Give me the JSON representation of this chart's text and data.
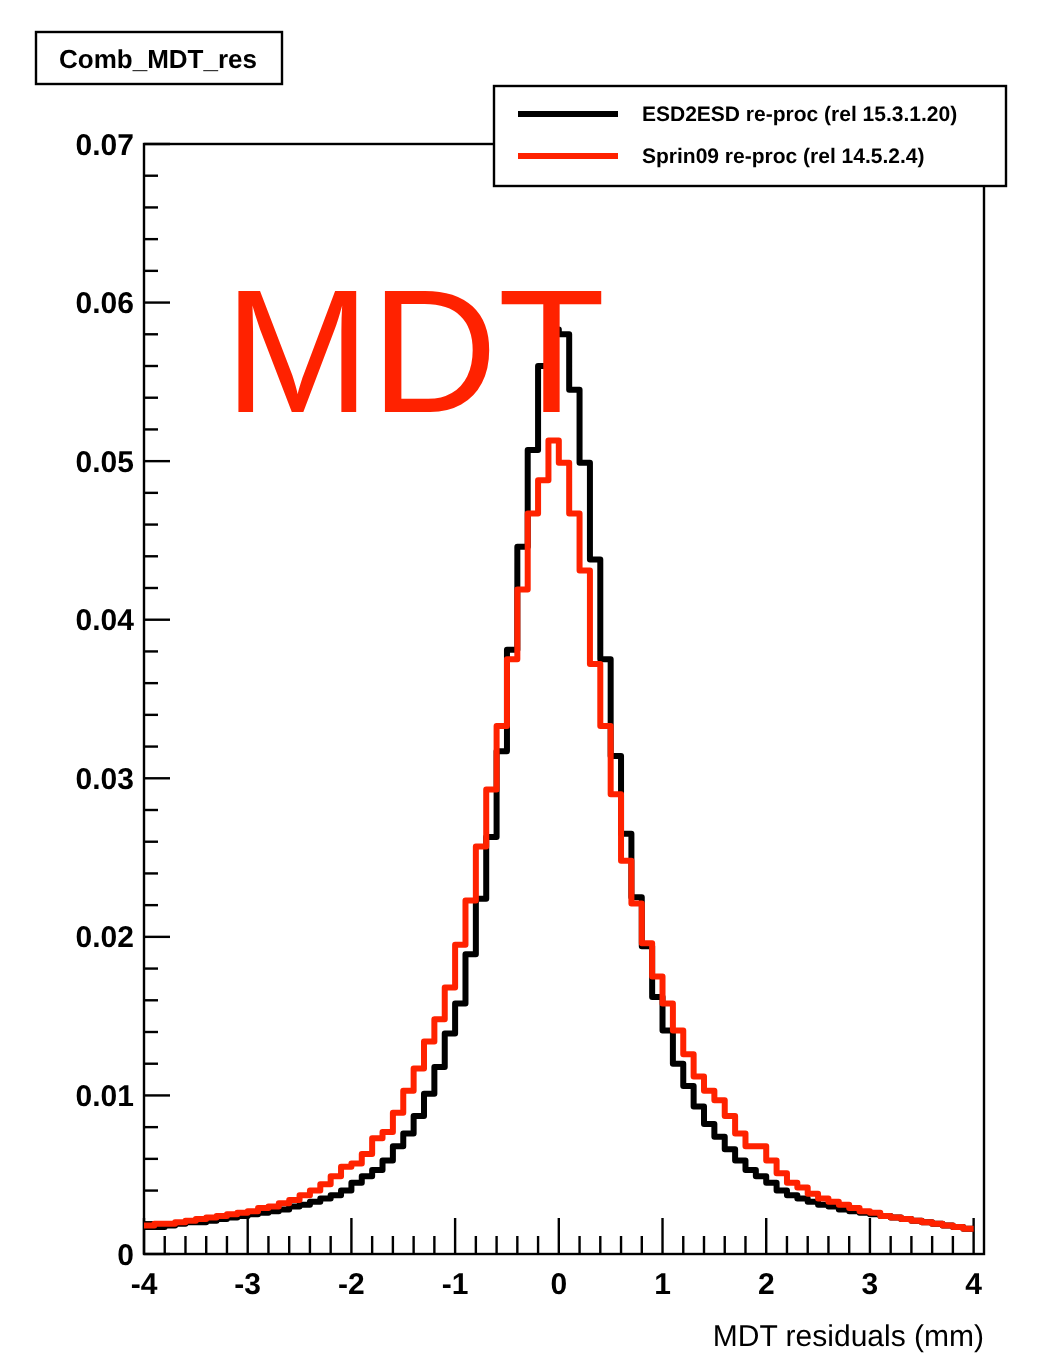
{
  "chart_data": {
    "type": "histogram",
    "title": "Comb_MDT_res",
    "xlabel": "MDT residuals (mm)",
    "annotations": [
      "MDT"
    ],
    "bins": [
      -4,
      -3.9,
      -3.8,
      -3.7,
      -3.6,
      -3.5,
      -3.4,
      -3.3,
      -3.2,
      -3.1,
      -3,
      -2.9,
      -2.8,
      -2.7,
      -2.6,
      -2.5,
      -2.4,
      -2.3,
      -2.2,
      -2.1,
      -2,
      -1.9,
      -1.8,
      -1.7,
      -1.6,
      -1.5,
      -1.4,
      -1.3,
      -1.2,
      -1.1,
      -1,
      -0.9,
      -0.8,
      -0.7,
      -0.6,
      -0.5,
      -0.4,
      -0.3,
      -0.2,
      -0.1,
      0,
      0.1,
      0.2,
      0.3,
      0.4,
      0.5,
      0.6,
      0.7,
      0.8,
      0.9,
      1,
      1.1,
      1.2,
      1.3,
      1.4,
      1.5,
      1.6,
      1.7,
      1.8,
      1.9,
      2,
      2.1,
      2.2,
      2.3,
      2.4,
      2.5,
      2.6,
      2.7,
      2.8,
      2.9,
      3,
      3.1,
      3.2,
      3.3,
      3.4,
      3.5,
      3.6,
      3.7,
      3.8,
      3.9,
      4
    ],
    "series": [
      {
        "name": "ESD2ESD re-proc (rel 15.3.1.20)",
        "color": "#000000",
        "values": [
          0.0017,
          0.0017,
          0.0018,
          0.0019,
          0.002,
          0.002,
          0.0021,
          0.0022,
          0.0023,
          0.0024,
          0.0025,
          0.0026,
          0.0027,
          0.0028,
          0.003,
          0.0031,
          0.0033,
          0.0035,
          0.0037,
          0.004,
          0.0045,
          0.0049,
          0.0053,
          0.0059,
          0.0068,
          0.0076,
          0.0087,
          0.0101,
          0.0118,
          0.0139,
          0.0158,
          0.0189,
          0.0224,
          0.0263,
          0.0317,
          0.0381,
          0.0446,
          0.0507,
          0.056,
          0.0583,
          0.058,
          0.0545,
          0.0499,
          0.0438,
          0.0375,
          0.0314,
          0.0265,
          0.0225,
          0.0194,
          0.0162,
          0.0141,
          0.012,
          0.0106,
          0.0093,
          0.0082,
          0.0074,
          0.0066,
          0.0059,
          0.0053,
          0.0049,
          0.0045,
          0.004,
          0.0037,
          0.0035,
          0.0033,
          0.0031,
          0.003,
          0.0028,
          0.0027,
          0.0026,
          0.0025,
          0.0024,
          0.0023,
          0.0022,
          0.0021,
          0.002,
          0.0019,
          0.0018,
          0.0017,
          0.0016
        ]
      },
      {
        "name": "Sprin09 re-proc (rel 14.5.2.4)",
        "color": "#ff2200",
        "values": [
          0.0018,
          0.0019,
          0.0019,
          0.002,
          0.0021,
          0.0022,
          0.0023,
          0.0024,
          0.0025,
          0.0026,
          0.0027,
          0.0029,
          0.003,
          0.0032,
          0.0034,
          0.0037,
          0.004,
          0.0044,
          0.0049,
          0.0055,
          0.0057,
          0.0063,
          0.0073,
          0.0077,
          0.0089,
          0.0103,
          0.0117,
          0.0134,
          0.0148,
          0.0168,
          0.0195,
          0.0223,
          0.0257,
          0.0293,
          0.0333,
          0.0375,
          0.0419,
          0.0467,
          0.0488,
          0.0513,
          0.0499,
          0.0467,
          0.0431,
          0.0372,
          0.0333,
          0.029,
          0.0248,
          0.0221,
          0.0196,
          0.0175,
          0.0158,
          0.0141,
          0.0126,
          0.0112,
          0.0103,
          0.0097,
          0.0087,
          0.0076,
          0.0068,
          0.0068,
          0.0059,
          0.0051,
          0.0045,
          0.0042,
          0.0038,
          0.0035,
          0.0033,
          0.0031,
          0.0029,
          0.0027,
          0.0026,
          0.0024,
          0.0023,
          0.0022,
          0.0021,
          0.002,
          0.0019,
          0.0018,
          0.0017,
          0.0016
        ]
      }
    ],
    "xlim": [
      -4,
      4.1
    ],
    "ylim": [
      0,
      0.07
    ],
    "xticks": [
      -4,
      {
        "value": -3.8,
        "label": null
      },
      {
        "value": -3.6,
        "label": null
      },
      {
        "value": -3.4,
        "label": null
      },
      {
        "value": -3.2,
        "label": null
      },
      -3,
      {
        "value": -2.8,
        "label": null
      },
      {
        "value": -2.6,
        "label": null
      },
      {
        "value": -2.4,
        "label": null
      },
      {
        "value": -2.2,
        "label": null
      },
      -2,
      {
        "value": -1.8,
        "label": null
      },
      {
        "value": -1.6,
        "label": null
      },
      {
        "value": -1.4,
        "label": null
      },
      {
        "value": -1.2,
        "label": null
      },
      -1,
      {
        "value": -0.8,
        "label": null
      },
      {
        "value": -0.6,
        "label": null
      },
      {
        "value": -0.4,
        "label": null
      },
      {
        "value": -0.2,
        "label": null
      },
      0,
      {
        "value": 0.2,
        "label": null
      },
      {
        "value": 0.4,
        "label": null
      },
      {
        "value": 0.6,
        "label": null
      },
      {
        "value": 0.8,
        "label": null
      },
      1,
      {
        "value": 1.2,
        "label": null
      },
      {
        "value": 1.4,
        "label": null
      },
      {
        "value": 1.6,
        "label": null
      },
      {
        "value": 1.8,
        "label": null
      },
      2,
      {
        "value": 2.2,
        "label": null
      },
      {
        "value": 2.4,
        "label": null
      },
      {
        "value": 2.6,
        "label": null
      },
      {
        "value": 2.8,
        "label": null
      },
      3,
      {
        "value": 3.2,
        "label": null
      },
      {
        "value": 3.4,
        "label": null
      },
      {
        "value": 3.6,
        "label": null
      },
      {
        "value": 3.8,
        "label": null
      },
      4
    ],
    "yticks": [
      0,
      {
        "value": 0.002,
        "label": null
      },
      {
        "value": 0.004,
        "label": null
      },
      {
        "value": 0.006,
        "label": null
      },
      {
        "value": 0.008,
        "label": null
      },
      0.01,
      {
        "value": 0.012,
        "label": null
      },
      {
        "value": 0.014,
        "label": null
      },
      {
        "value": 0.016,
        "label": null
      },
      {
        "value": 0.018,
        "label": null
      },
      0.02,
      {
        "value": 0.022,
        "label": null
      },
      {
        "value": 0.024,
        "label": null
      },
      {
        "value": 0.026,
        "label": null
      },
      {
        "value": 0.028,
        "label": null
      },
      0.03,
      {
        "value": 0.032,
        "label": null
      },
      {
        "value": 0.034,
        "label": null
      },
      {
        "value": 0.036,
        "label": null
      },
      {
        "value": 0.038,
        "label": null
      },
      0.04,
      {
        "value": 0.042,
        "label": null
      },
      {
        "value": 0.044,
        "label": null
      },
      {
        "value": 0.046,
        "label": null
      },
      {
        "value": 0.048,
        "label": null
      },
      0.05,
      {
        "value": 0.052,
        "label": null
      },
      {
        "value": 0.054,
        "label": null
      },
      {
        "value": 0.056,
        "label": null
      },
      {
        "value": 0.058,
        "label": null
      },
      0.06,
      {
        "value": 0.062,
        "label": null
      },
      {
        "value": 0.064,
        "label": null
      },
      {
        "value": 0.066,
        "label": null
      },
      {
        "value": 0.068,
        "label": null
      },
      0.07
    ],
    "legend": "top right",
    "grid": false
  }
}
